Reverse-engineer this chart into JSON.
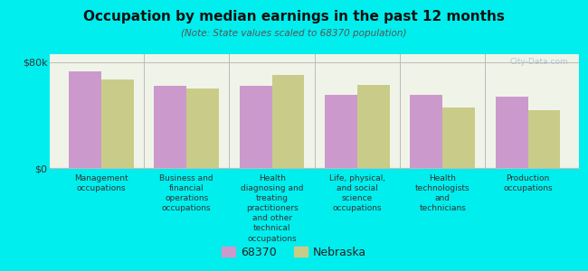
{
  "title": "Occupation by median earnings in the past 12 months",
  "subtitle": "(Note: State values scaled to 68370 population)",
  "categories": [
    "Management\noccupations",
    "Business and\nfinancial\noperations\noccupations",
    "Health\ndiagnosing and\ntreating\npractitioners\nand other\ntechnical\noccupations",
    "Life, physical,\nand social\nscience\noccupations",
    "Health\ntechnologists\nand\ntechnicians",
    "Production\noccupations"
  ],
  "values_68370": [
    73000,
    62000,
    62000,
    55000,
    55000,
    54000
  ],
  "values_nebraska": [
    67000,
    60000,
    70000,
    63000,
    46000,
    44000
  ],
  "color_68370": "#cc99cc",
  "color_nebraska": "#c8cc88",
  "background_color": "#00eeee",
  "plot_background": "#f0f4e8",
  "ylim": [
    0,
    86000
  ],
  "ytick_labels": [
    "$0",
    "$80k"
  ],
  "ytick_vals": [
    0,
    80000
  ],
  "legend_label_68370": "68370",
  "legend_label_nebraska": "Nebraska",
  "bar_width": 0.38,
  "watermark": "City-Data.com"
}
